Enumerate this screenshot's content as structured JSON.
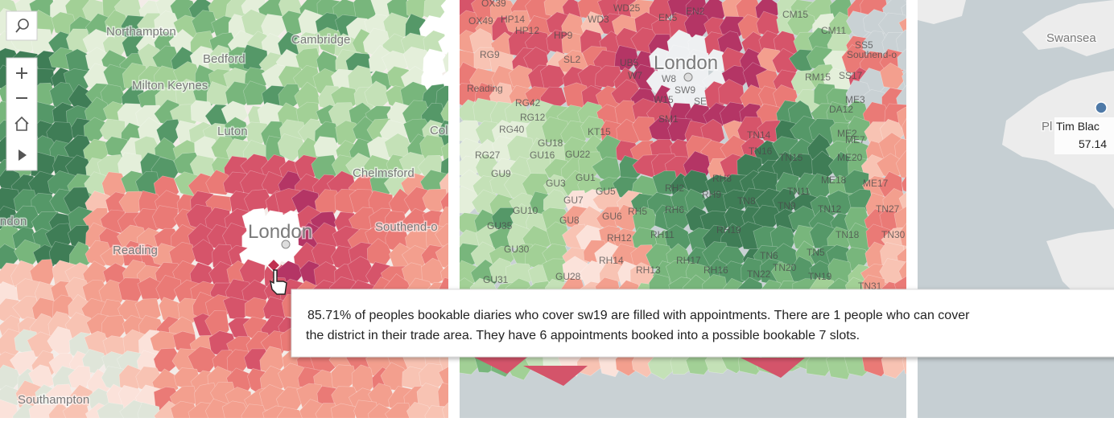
{
  "left_map": {
    "labels": [
      "Northampton",
      "Cambridge",
      "Bedford",
      "Milton Keynes",
      "Luton",
      "Col",
      "Chelmsford",
      "London",
      "Southend-o",
      "Reading",
      "ndon",
      "Southampton"
    ]
  },
  "middle_map": {
    "city": "London",
    "labels": [
      "OX39",
      "HP14",
      "OX49",
      "HP12",
      "WD3",
      "WD25",
      "EN5",
      "EN2",
      "RG9",
      "HP9",
      "SL2",
      "UB5",
      "W7",
      "W8",
      "SW9",
      "W15",
      "SE",
      "SM1",
      "RM15",
      "SS17",
      "ME3",
      "RG42",
      "RG12",
      "RG40",
      "GU18",
      "GU16",
      "GU22",
      "KT15",
      "RG27",
      "GU9",
      "GU3",
      "GU1",
      "GU7",
      "GU5",
      "GU10",
      "GU8",
      "GU6",
      "RH5",
      "RH6",
      "RH2",
      "RH9",
      "RH8",
      "TN8",
      "TN16",
      "TN15",
      "TN14",
      "TN11",
      "TN9",
      "TN12",
      "ME2",
      "ME7",
      "ME20",
      "ME18",
      "ME17",
      "RH12",
      "RH11",
      "RH19",
      "RH14",
      "RH13",
      "RH17",
      "RH16",
      "TN6",
      "TN5",
      "TN18",
      "TN22",
      "TN20",
      "TN19",
      "TN27",
      "TN30",
      "TN31",
      "GU35",
      "GU30",
      "GU28",
      "GU31",
      "DA12",
      "CM15",
      "CM11",
      "SS5",
      "Southend-o",
      "Reading"
    ]
  },
  "right_map": {
    "place": "Swansea",
    "partial": "Pl",
    "marker_name": "Tim Blac",
    "marker_value": "57.14"
  },
  "tooltip": {
    "lines": [
      "85.71%  of  peoples bookable diaries who cover sw19 are filled with appointments. There are 1 people who can cover",
      "the district  in their trade area. They have 6 appointments booked into a possible bookable 7 slots."
    ]
  }
}
